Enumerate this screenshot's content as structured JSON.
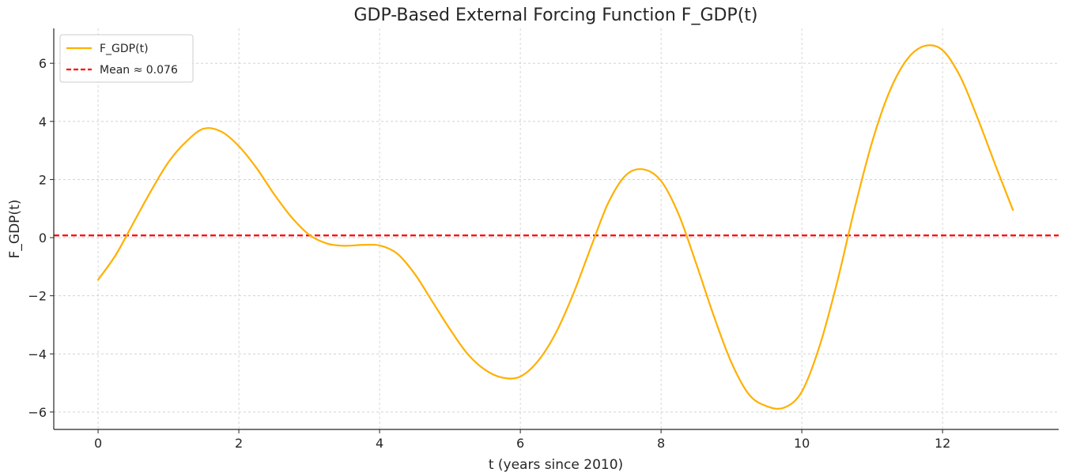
{
  "chart_data": {
    "type": "line",
    "title": "GDP-Based External Forcing Function F_GDP(t)",
    "xlabel": "t (years since 2010)",
    "ylabel": "F_GDP(t)",
    "xlim": [
      -0.63,
      13.65
    ],
    "ylim": [
      -6.6,
      7.2
    ],
    "xticks": [
      0,
      2,
      4,
      6,
      8,
      10,
      12
    ],
    "yticks": [
      -6,
      -4,
      -2,
      0,
      2,
      4,
      6
    ],
    "xtick_labels": [
      "0",
      "2",
      "4",
      "6",
      "8",
      "10",
      "12"
    ],
    "ytick_labels": [
      "−6",
      "−4",
      "−2",
      "0",
      "2",
      "4",
      "6"
    ],
    "grid": true,
    "legend_position": "top-left",
    "series": [
      {
        "name": "F_GDP(t)",
        "color": "#ffb000",
        "style": "solid",
        "x": [
          0,
          0.25,
          0.5,
          0.75,
          1.0,
          1.25,
          1.5,
          1.75,
          2.0,
          2.25,
          2.5,
          2.75,
          3.0,
          3.25,
          3.5,
          3.75,
          4.0,
          4.25,
          4.5,
          4.75,
          5.0,
          5.25,
          5.5,
          5.75,
          6.0,
          6.25,
          6.5,
          6.75,
          7.0,
          7.25,
          7.5,
          7.75,
          8.0,
          8.25,
          8.5,
          8.75,
          9.0,
          9.25,
          9.5,
          9.75,
          10.0,
          10.25,
          10.5,
          10.75,
          11.0,
          11.25,
          11.5,
          11.75,
          12.0,
          12.25,
          12.5,
          12.75,
          13.0
        ],
        "y": [
          -1.45,
          -0.6,
          0.5,
          1.6,
          2.6,
          3.3,
          3.75,
          3.65,
          3.15,
          2.4,
          1.5,
          0.7,
          0.1,
          -0.2,
          -0.28,
          -0.25,
          -0.27,
          -0.55,
          -1.25,
          -2.2,
          -3.15,
          -4.0,
          -4.55,
          -4.82,
          -4.78,
          -4.25,
          -3.3,
          -1.95,
          -0.35,
          1.2,
          2.15,
          2.35,
          1.95,
          0.8,
          -0.9,
          -2.7,
          -4.3,
          -5.4,
          -5.8,
          -5.85,
          -5.3,
          -3.75,
          -1.55,
          1.0,
          3.3,
          5.05,
          6.15,
          6.6,
          6.45,
          5.55,
          4.1,
          2.5,
          0.95
        ]
      }
    ],
    "mean_line": {
      "name": "Mean ≈ 0.076",
      "value": 0.076,
      "color": "#ff0000",
      "style": "dashed"
    }
  }
}
